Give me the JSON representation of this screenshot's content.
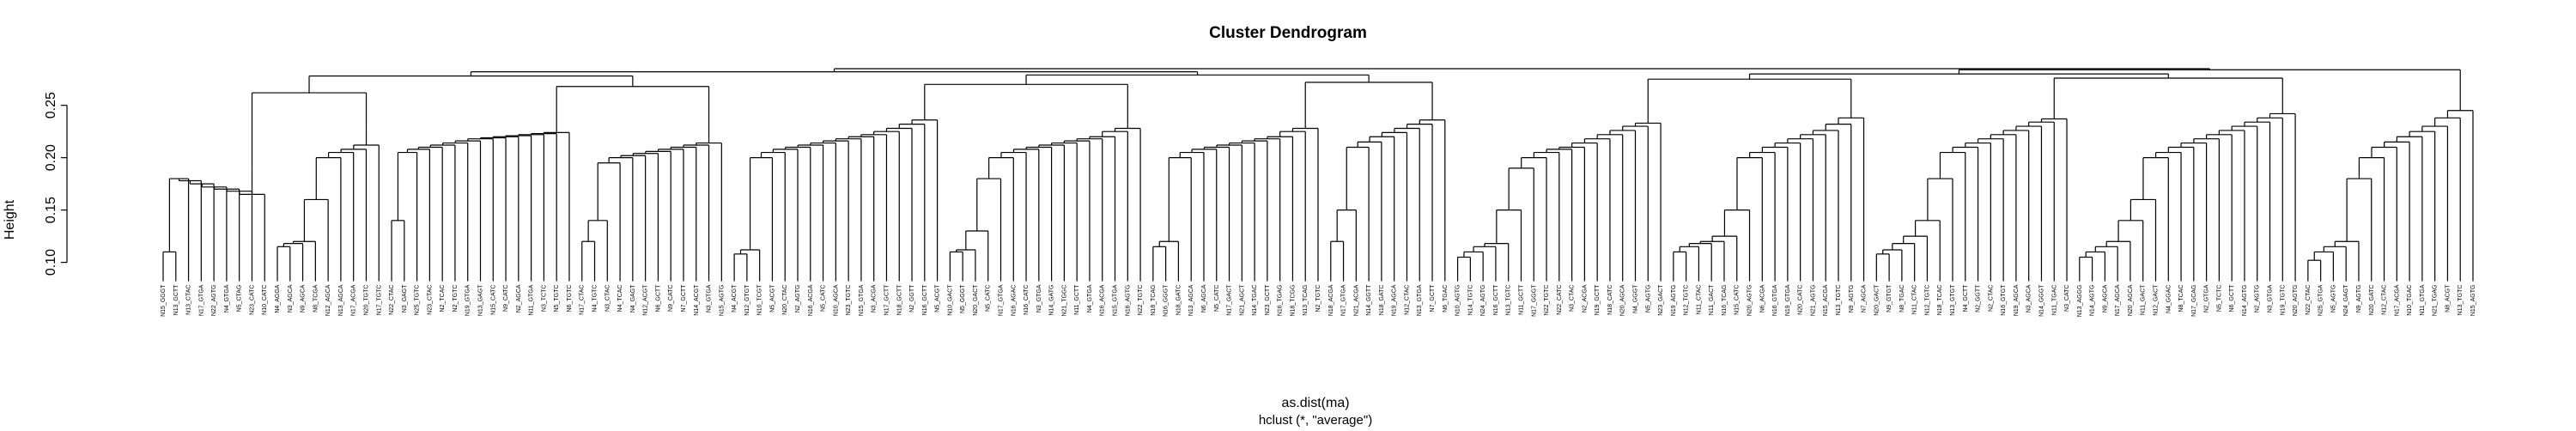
{
  "chart_data": {
    "type": "dendrogram",
    "title": "Cluster Dendrogram",
    "xlabel": "as.dist(ma)",
    "sublabel": "hclust (*, \"average\")",
    "ylabel": "Height",
    "yticks": [
      "0.10",
      "0.15",
      "0.20",
      "0.25"
    ],
    "tick_values": [
      0.1,
      0.15,
      0.2,
      0.25
    ],
    "ylim": [
      0.08,
      0.285
    ],
    "leaf_base": 0.082,
    "clusters": [
      {
        "height": 0.19,
        "leaves": [
          "N15_GGGT",
          "N13_GCTT",
          "N13_CTAC",
          "N17_GTGA",
          "N22_AGTG",
          "N4_GTGA",
          "N5_CTAG",
          "N23_CATC",
          "N10_CATC"
        ],
        "merges": [
          0.11,
          0.18,
          0.178,
          0.175,
          0.172,
          0.17,
          0.168,
          0.165
        ]
      },
      {
        "height": 0.23,
        "leaves": [
          "N4_AGGA",
          "N3_AGCA",
          "N9_AGCA",
          "N8_TCGA",
          "N12_AGCA",
          "N13_AGCA",
          "N17_ACGA",
          "N20_TGTC",
          "N17_TGTC"
        ],
        "merges": [
          0.115,
          0.118,
          0.12,
          0.16,
          0.2,
          0.205,
          0.208,
          0.212
        ]
      },
      {
        "height": 0.225,
        "leaves": [
          "N22_CTAC",
          "N3_GAGT",
          "N25_TGTC",
          "N23_CTAC",
          "N2_TCAC",
          "N2_TGTC",
          "N19_GTGA",
          "N13_GAGT",
          "N15_CATC",
          "N9_CATC",
          "N2_AGCA",
          "N11_GTGA",
          "N3_TCTC",
          "N5_TGTC",
          "N6_TGTC"
        ],
        "merges": [
          0.14,
          0.205,
          0.208,
          0.21,
          0.212,
          0.214,
          0.216,
          0.218,
          0.219,
          0.22,
          0.221,
          0.222,
          0.223,
          0.224
        ]
      },
      {
        "height": 0.218,
        "leaves": [
          "N17_CTAC",
          "N4_TGTC",
          "N3_CTAC",
          "N4_TCAC",
          "N4_GAGT",
          "N12_ACGT",
          "N6_GCTT",
          "N9_CATC",
          "N7_GCTT",
          "N14_ACGT",
          "N3_GTGA",
          "N15_AGTG"
        ],
        "merges": [
          0.12,
          0.14,
          0.195,
          0.2,
          0.202,
          0.204,
          0.206,
          0.208,
          0.21,
          0.212,
          0.214
        ]
      },
      {
        "height": 0.24,
        "leaves": [
          "N4_ACGT",
          "N12_GTGT",
          "N10_TCGT",
          "N5_ACGT",
          "N20_CTAC",
          "N2_AGTG",
          "N16_ACGA",
          "N5_CATC",
          "N10_AGCA",
          "N23_TGTC",
          "N15_GTGA",
          "N3_ACGA",
          "N17_GCTT",
          "N18_GCTT",
          "N2_GGTT",
          "N16_GCTT",
          "N5_ACGT"
        ],
        "merges": [
          0.108,
          0.112,
          0.2,
          0.205,
          0.208,
          0.21,
          0.212,
          0.214,
          0.216,
          0.218,
          0.22,
          0.222,
          0.225,
          0.228,
          0.232,
          0.236
        ]
      },
      {
        "height": 0.232,
        "leaves": [
          "N10_GACT",
          "N5_GGGT",
          "N20_GACT",
          "N5_CATC",
          "N17_GTGA",
          "N16_AGAC",
          "N16_CATC",
          "N3_GTGA",
          "N14_GATG",
          "N21_TGGC",
          "N11_GCTT",
          "N4_GTGA",
          "N16_ACGA",
          "N15_GTGA",
          "N16_AGTG",
          "N22_TGTC"
        ],
        "merges": [
          0.11,
          0.112,
          0.13,
          0.18,
          0.2,
          0.205,
          0.208,
          0.21,
          0.212,
          0.214,
          0.216,
          0.218,
          0.22,
          0.225,
          0.228
        ]
      },
      {
        "height": 0.232,
        "leaves": [
          "N18_TCAG",
          "N16_GGGT",
          "N18_GATC",
          "N13_AGCA",
          "N6_AGCA",
          "N5_CATC",
          "N17_GACT",
          "N21_AGCT",
          "N14_TGAC",
          "N23_GCTT",
          "N16_TGAG",
          "N18_TCGG",
          "N13_TCAG",
          "N2_TGTC"
        ],
        "merges": [
          0.115,
          0.12,
          0.2,
          0.205,
          0.208,
          0.21,
          0.212,
          0.214,
          0.216,
          0.218,
          0.22,
          0.225,
          0.228
        ]
      },
      {
        "height": 0.24,
        "leaves": [
          "N18_ACGA",
          "N17_GTGA",
          "N21_ACGA",
          "N14_GGTT",
          "N18_GATC",
          "N19_AGCA",
          "N12_CTAC",
          "N13_GTGA",
          "N7_GCTT",
          "N6_TGAC"
        ],
        "merges": [
          0.12,
          0.15,
          0.21,
          0.215,
          0.22,
          0.224,
          0.228,
          0.232,
          0.236
        ]
      },
      {
        "height": 0.236,
        "leaves": [
          "N10_AGTG",
          "N14_TGTC",
          "N24_AGTG",
          "N16_GCTT",
          "N13_TGTC",
          "N11_GCTT",
          "N17_GGGT",
          "N22_TGTC",
          "N22_CATC",
          "N3_CTAC",
          "N2_ACGA",
          "N19_GCTT",
          "N18_CATC",
          "N20_AGCA",
          "N4_GGGT",
          "N5_AGTG",
          "N23_GACT"
        ],
        "merges": [
          0.105,
          0.11,
          0.115,
          0.118,
          0.15,
          0.19,
          0.2,
          0.205,
          0.208,
          0.21,
          0.214,
          0.218,
          0.222,
          0.226,
          0.23,
          0.233
        ]
      },
      {
        "height": 0.245,
        "leaves": [
          "N19_AGTG",
          "N12_TGTC",
          "N11_CTAC",
          "N11_GACT",
          "N16_TCAG",
          "N15_CATC",
          "N20_AGTG",
          "N6_ACGA",
          "N16_GTGA",
          "N19_GTGA",
          "N20_CATC",
          "N21_AGTG",
          "N15_ACGA",
          "N13_TGTC",
          "N9_AGTG",
          "N7_AGCA"
        ],
        "merges": [
          0.11,
          0.115,
          0.118,
          0.12,
          0.125,
          0.15,
          0.2,
          0.205,
          0.21,
          0.214,
          0.218,
          0.222,
          0.226,
          0.232,
          0.238
        ]
      },
      {
        "height": 0.24,
        "leaves": [
          "N20_GACT",
          "N9_GTGT",
          "N8_TGAC",
          "N11_CTAC",
          "N12_TGTC",
          "N18_TCAC",
          "N13_GTGT",
          "N4_GCTT",
          "N2_GGTT",
          "N2_CTAC",
          "N16_GTGT",
          "N19_AGCA",
          "N3_AGCA",
          "N14_GGGT",
          "N11_TGAC",
          "N3_CATC"
        ],
        "merges": [
          0.108,
          0.112,
          0.118,
          0.125,
          0.14,
          0.18,
          0.205,
          0.21,
          0.214,
          0.218,
          0.222,
          0.226,
          0.23,
          0.234,
          0.237
        ]
      },
      {
        "height": 0.245,
        "leaves": [
          "N13_AGGG",
          "N14_AGTG",
          "N9_AGCA",
          "N17_AGCA",
          "N20_AGCA",
          "N11_GACT",
          "N12_GACT",
          "N4_GGAC",
          "N8_TCAC",
          "N17_GCAG",
          "N2_GTGA",
          "N5_TCTC",
          "N6_GCTT",
          "N14_AGTG",
          "N2_AGTG",
          "N3_GTGA",
          "N19_TGTC",
          "N20_AGTG"
        ],
        "merges": [
          0.105,
          0.11,
          0.115,
          0.12,
          0.14,
          0.16,
          0.2,
          0.205,
          0.21,
          0.214,
          0.218,
          0.222,
          0.226,
          0.23,
          0.234,
          0.238,
          0.242
        ]
      },
      {
        "height": 0.25,
        "leaves": [
          "N22_CTAC",
          "N25_GTGA",
          "N5_AGTG",
          "N24_GAGT",
          "N9_AGTG",
          "N20_GATC",
          "N12_CTAC",
          "N17_ACGA",
          "N10_TGAC",
          "N11_GTGA",
          "N21_TGAG",
          "N8_ACGT",
          "N13_TGTC",
          "N15_AGTG"
        ],
        "merges": [
          0.102,
          0.11,
          0.115,
          0.12,
          0.18,
          0.2,
          0.21,
          0.215,
          0.22,
          0.225,
          0.23,
          0.238,
          0.245
        ]
      }
    ],
    "top_merges": [
      0.262,
      0.268,
      0.27,
      0.272,
      0.275,
      0.276,
      0.278,
      0.279,
      0.28,
      0.282,
      0.284,
      0.285
    ]
  }
}
